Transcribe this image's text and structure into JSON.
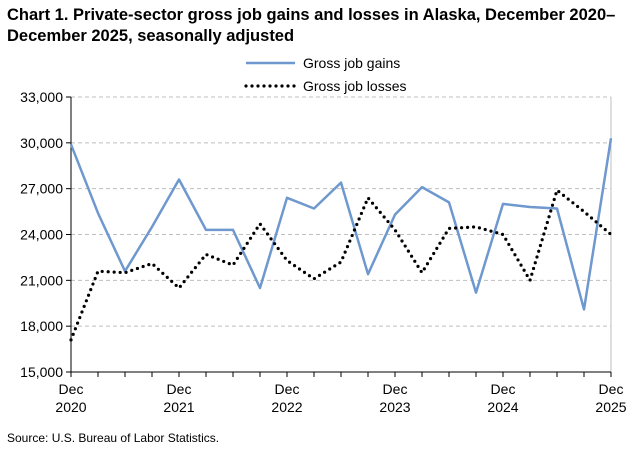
{
  "title": "Chart 1. Private-sector gross job gains and losses in Alaska, December 2020–December 2025, seasonally adjusted",
  "source": "Source: U.S. Bureau of Labor Statistics.",
  "colors": {
    "gains": "#6f98cf",
    "losses": "#000000",
    "grid": "#bfbfbf",
    "axis": "#000000"
  },
  "chart_data": {
    "type": "line",
    "title": "Chart 1. Private-sector gross job gains and losses in Alaska, December 2020–December 2025, seasonally adjusted",
    "xlabel": "",
    "ylabel": "",
    "ylim": [
      15000,
      33000
    ],
    "yticks": [
      15000,
      18000,
      21000,
      24000,
      27000,
      30000,
      33000
    ],
    "ytick_labels": [
      "15,000",
      "18,000",
      "21,000",
      "24,000",
      "27,000",
      "30,000",
      "33,000"
    ],
    "xtick_labels": [
      {
        "month": "Dec",
        "year": "2020",
        "index": 0
      },
      {
        "month": "Dec",
        "year": "2021",
        "index": 4
      },
      {
        "month": "Dec",
        "year": "2022",
        "index": 8
      },
      {
        "month": "Dec",
        "year": "2023",
        "index": 12
      },
      {
        "month": "Dec",
        "year": "2024",
        "index": 16
      },
      {
        "month": "Dec",
        "year": "2025",
        "index": 20
      }
    ],
    "x": [
      "Dec 2020",
      "Mar 2021",
      "Jun 2021",
      "Sep 2021",
      "Dec 2021",
      "Mar 2022",
      "Jun 2022",
      "Sep 2022",
      "Dec 2022",
      "Mar 2023",
      "Jun 2023",
      "Sep 2023",
      "Dec 2023",
      "Mar 2024",
      "Jun 2024",
      "Sep 2024",
      "Dec 2024",
      "Mar 2025",
      "Jun 2025",
      "Sep 2025",
      "Dec 2025"
    ],
    "grid": true,
    "legend_position": "top-center",
    "series": [
      {
        "name": "Gross job gains",
        "style": "solid",
        "values": [
          29900,
          25400,
          21600,
          24500,
          27600,
          24300,
          24300,
          20500,
          26400,
          25700,
          27400,
          21400,
          25300,
          27100,
          26100,
          20200,
          26000,
          25800,
          25700,
          19100,
          30300
        ]
      },
      {
        "name": "Gross job losses",
        "style": "dotted",
        "values": [
          17100,
          21600,
          21500,
          22100,
          20500,
          22700,
          22000,
          24700,
          22300,
          21100,
          22200,
          26400,
          24300,
          21500,
          24400,
          24500,
          24000,
          21000,
          26900,
          25500,
          24000
        ]
      }
    ]
  }
}
